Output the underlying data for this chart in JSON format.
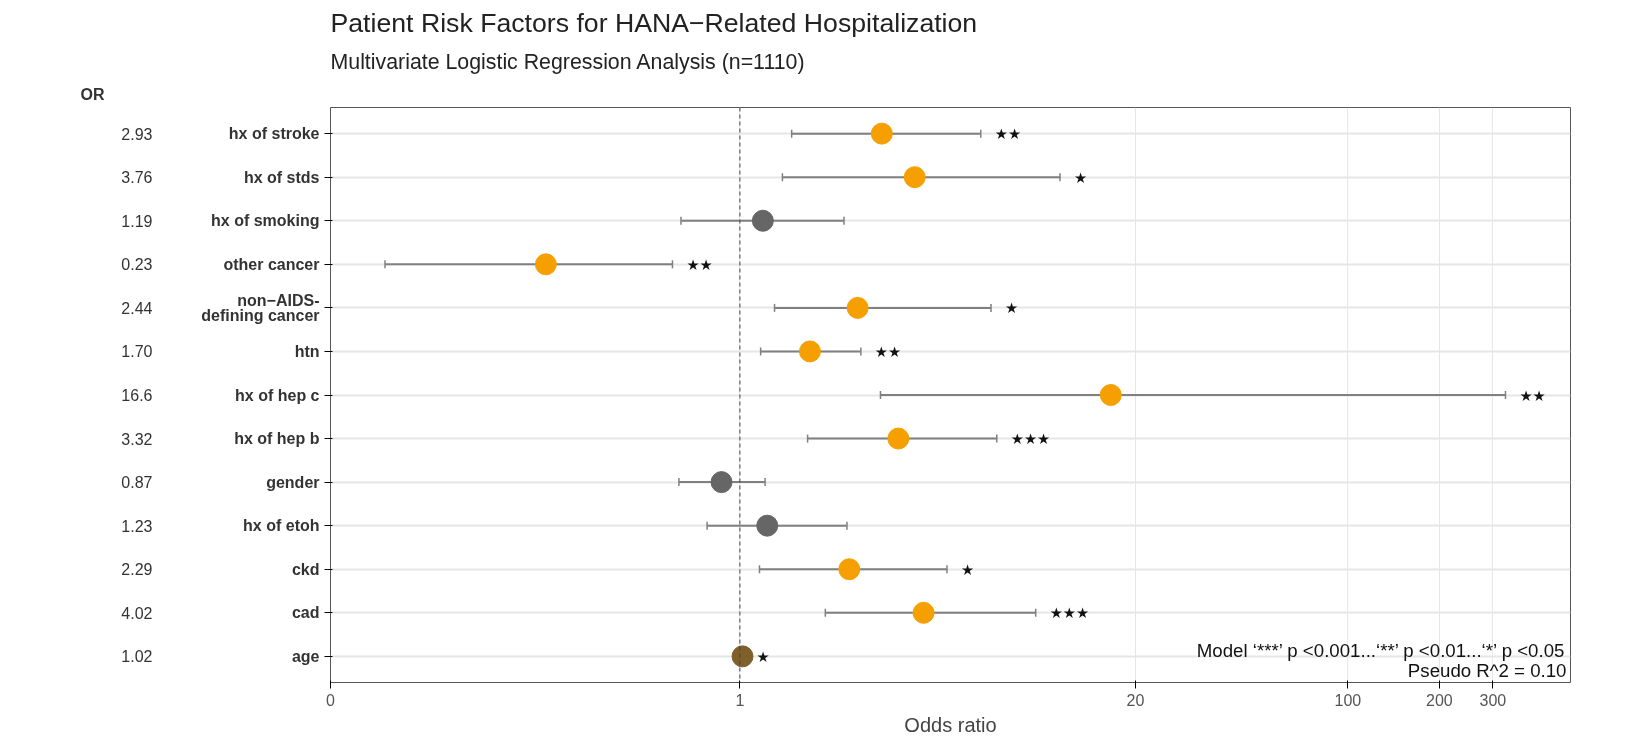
{
  "chart_data": {
    "type": "scatter",
    "title": "Patient Risk Factors for HANA−Related Hospitalization",
    "subtitle": "Multivariate Logistic Regression Analysis (n=1110)",
    "xlabel": "Odds ratio",
    "categories": [
      "hx of stroke",
      "hx of stds",
      "hx of smoking",
      "other cancer",
      "non−AIDS-\ndefining cancer",
      "htn",
      "hx of hep c",
      "hx of hep b",
      "gender",
      "hx of etoh",
      "ckd",
      "cad",
      "age"
    ],
    "values": [
      2.93,
      3.76,
      1.19,
      0.23,
      2.44,
      1.7,
      16.6,
      3.32,
      0.87,
      1.23,
      2.29,
      4.02,
      1.02
    ],
    "value_labels": [
      "2.93",
      "3.76",
      "1.19",
      "0.23",
      "2.44",
      "1.70",
      "16.6",
      "3.32",
      "0.87",
      "1.23",
      "2.29",
      "4.02",
      "1.02"
    ],
    "colors": [
      "#f5a000",
      "#f5a000",
      "#666666",
      "#f5a000",
      "#f5a000",
      "#f5a000",
      "#f5a000",
      "#f5a000",
      "#666666",
      "#666666",
      "#f5a000",
      "#f5a000",
      "#7f5f2a"
    ],
    "errors": [
      [
        1.48,
        6.2
      ],
      [
        1.38,
        11.3
      ],
      [
        0.64,
        2.2
      ],
      [
        0.068,
        0.6
      ],
      [
        1.3,
        6.7
      ],
      [
        1.17,
        2.5
      ],
      [
        2.9,
        330
      ],
      [
        1.67,
        7.0
      ],
      [
        0.63,
        1.21
      ],
      [
        0.78,
        2.25
      ],
      [
        1.16,
        4.8
      ],
      [
        1.91,
        9.4
      ],
      null
    ],
    "annotations": [
      "OR",
      "★★",
      "★",
      "★★",
      "★",
      "★★",
      "★★",
      "★★★",
      "★",
      "★★★",
      "★",
      "Model ‘***’ p <0.001...‘**’ p <0.01...‘*’ p <0.05",
      "Pseudo R^2 = 0.10"
    ],
    "log": "x",
    "xlim": [
      0.045,
      540
    ],
    "xticks": [
      {
        "value": 0.045,
        "label": "0"
      },
      1,
      20,
      100,
      200,
      300
    ],
    "ref_lines": [
      {
        "axis": "x",
        "value": 1,
        "line_style": "dashed"
      }
    ],
    "grid": true,
    "marker": "circle",
    "orientation": "horizontal"
  }
}
